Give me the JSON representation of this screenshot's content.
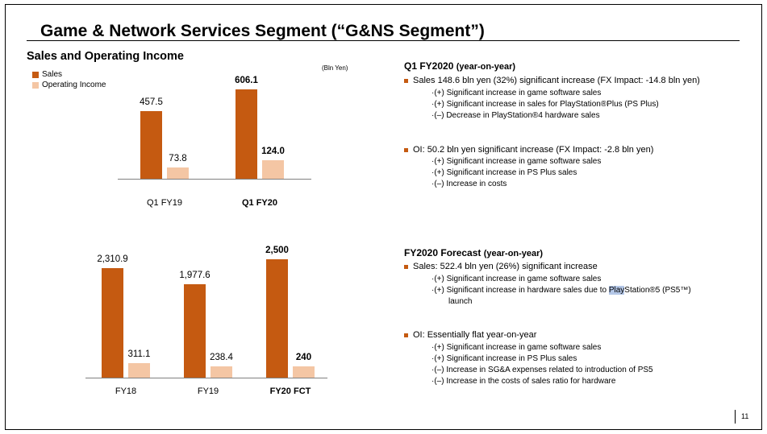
{
  "slide": {
    "title": "Game & Network Services Segment (“G&NS Segment”)",
    "section_title": "Sales and Operating Income",
    "unit": "(Bln Yen)",
    "page_number": "11"
  },
  "legend": [
    {
      "label": "Sales",
      "color": "#c55a11"
    },
    {
      "label": "Operating Income",
      "color": "#f4c6a4"
    }
  ],
  "chart_data": [
    {
      "type": "bar",
      "categories": [
        "Q1 FY19",
        "Q1 FY20"
      ],
      "series": [
        {
          "name": "Sales",
          "values": [
            457.5,
            606.1
          ],
          "labels": [
            "457.5",
            "606.1"
          ]
        },
        {
          "name": "Operating Income",
          "values": [
            73.8,
            124.0
          ],
          "labels": [
            "73.8",
            "124.0"
          ]
        }
      ],
      "bold_category": "Q1 FY20"
    },
    {
      "type": "bar",
      "categories": [
        "FY18",
        "FY19",
        "FY20 FCT"
      ],
      "series": [
        {
          "name": "Sales",
          "values": [
            2310.9,
            1977.6,
            2500
          ],
          "labels": [
            "2,310.9",
            "1,977.6",
            "2,500"
          ]
        },
        {
          "name": "Operating Income",
          "values": [
            311.1,
            238.4,
            240
          ],
          "labels": [
            "311.1",
            "238.4",
            "240"
          ]
        }
      ],
      "bold_category": "FY20 FCT"
    }
  ],
  "q1": {
    "heading": "Q1 FY2020",
    "heading_suffix": "(year-on-year)",
    "sales_bullet": "Sales  148.6 bln yen (32%) significant increase (FX Impact: -14.8 bln yen)",
    "sales_items": [
      "·(+) Significant increase in game software sales",
      "·(+) Significant increase in sales for PlayStation®Plus (PS Plus)",
      "·(–) Decrease in PlayStation®4 hardware sales"
    ],
    "oi_bullet": "OI: 50.2 bln yen significant increase (FX Impact:  -2.8 bln yen)",
    "oi_items": [
      "·(+) Significant increase in game software sales",
      "·(+) Significant increase in PS Plus sales",
      "·(–) Increase in costs"
    ]
  },
  "fy": {
    "heading": "FY2020 Forecast",
    "heading_suffix": "(year-on-year)",
    "sales_bullet": "Sales: 522.4 bln yen (26%) significant increase",
    "sales_items": [
      "·(+) Significant increase in game software sales",
      "·(+) Significant increase in hardware sales due to ",
      "launch"
    ],
    "highlight_word": "Play",
    "highlight_rest": "Station®5 (PS5™)",
    "oi_bullet": "OI: Essentially flat year-on-year",
    "oi_items": [
      "·(+) Significant increase in game software sales",
      "·(+) Significant increase in PS Plus sales",
      "·(–) Increase in SG&A expenses related to introduction of PS5",
      "·(–) Increase in the costs of sales ratio for hardware"
    ]
  }
}
